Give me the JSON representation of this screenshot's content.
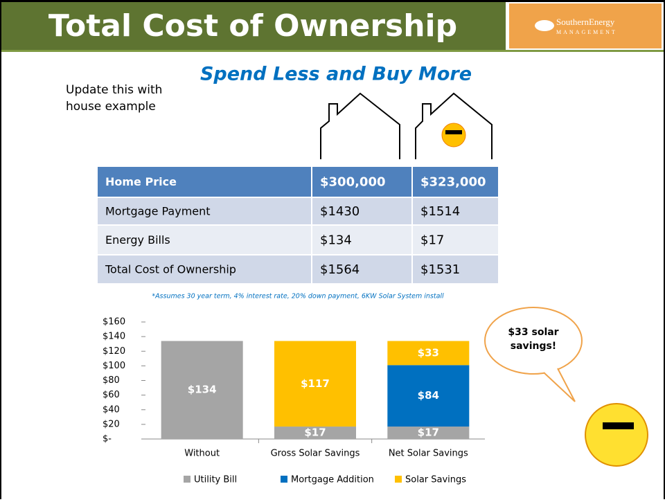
{
  "header": {
    "title": "Total Cost of Ownership",
    "logo": {
      "name": "SouthernEnergy",
      "sub": "MANAGEMENT"
    }
  },
  "subtitle": "Spend Less and Buy More",
  "note": "Update this with house example",
  "table": {
    "header": [
      "Home Price",
      "$300,000",
      "$323,000"
    ],
    "rows": [
      [
        "Mortgage Payment",
        "$1430",
        "$1514"
      ],
      [
        "Energy Bills",
        "$134",
        "$17"
      ],
      [
        "Total Cost of Ownership",
        "$1564",
        "$1531"
      ]
    ]
  },
  "footnote": "*Assumes 30 year term, 4% interest rate, 20% down payment, 6KW Solar System install",
  "callout": "$33 solar savings!",
  "chart_data": {
    "type": "stacked_bar",
    "categories": [
      "Without",
      "Gross Solar Savings",
      "Net Solar Savings"
    ],
    "series": [
      {
        "name": "Utility Bill",
        "color": "#a5a5a5",
        "values": [
          134,
          17,
          17
        ],
        "value_labels": [
          "$134",
          "$17",
          "$17"
        ]
      },
      {
        "name": "Mortgage Addition",
        "color": "#0070c0",
        "values": [
          null,
          null,
          84
        ],
        "value_labels": [
          null,
          null,
          "$84"
        ]
      },
      {
        "name": "Solar Savings",
        "color": "#ffc000",
        "values": [
          null,
          117,
          33
        ],
        "value_labels": [
          null,
          "$117",
          "$33"
        ]
      }
    ],
    "ylim": [
      0,
      160
    ],
    "yticks": [
      {
        "value": 0,
        "label": "$-"
      },
      {
        "value": 20,
        "label": "$20"
      },
      {
        "value": 40,
        "label": "$40"
      },
      {
        "value": 60,
        "label": "$60"
      },
      {
        "value": 80,
        "label": "$80"
      },
      {
        "value": 100,
        "label": "$100"
      },
      {
        "value": 120,
        "label": "$120"
      },
      {
        "value": 140,
        "label": "$140"
      },
      {
        "value": 160,
        "label": "$160"
      }
    ]
  }
}
